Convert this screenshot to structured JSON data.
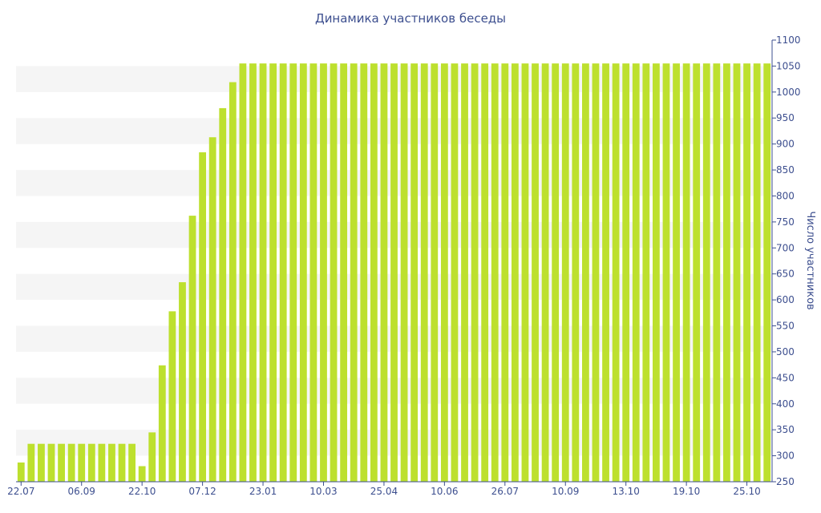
{
  "colors": {
    "bar": "#bde02e",
    "axis": "#3d4f8f",
    "band": "#f5f5f5"
  },
  "chart_data": {
    "type": "bar",
    "title": "Динамика участников беседы",
    "ylabel": "Число участников",
    "xlabel": "",
    "ylim": [
      250,
      1100
    ],
    "yticks": [
      250,
      300,
      350,
      400,
      450,
      500,
      550,
      600,
      650,
      700,
      750,
      800,
      850,
      900,
      950,
      1000,
      1050,
      1100
    ],
    "y_axis_side": "right",
    "grid": "alternating horizontal bands",
    "x_tick_labels": [
      {
        "bar": 0,
        "label": "22.07"
      },
      {
        "bar": 6,
        "label": "06.09"
      },
      {
        "bar": 12,
        "label": "22.10"
      },
      {
        "bar": 18,
        "label": "07.12"
      },
      {
        "bar": 24,
        "label": "23.01"
      },
      {
        "bar": 30,
        "label": "10.03"
      },
      {
        "bar": 36,
        "label": "25.04"
      },
      {
        "bar": 42,
        "label": "10.06"
      },
      {
        "bar": 48,
        "label": "26.07"
      },
      {
        "bar": 54,
        "label": "10.09"
      },
      {
        "bar": 60,
        "label": "13.10"
      },
      {
        "bar": 66,
        "label": "19.10"
      },
      {
        "bar": 72,
        "label": "25.10"
      }
    ],
    "values": [
      287,
      323,
      323,
      323,
      323,
      323,
      323,
      323,
      323,
      323,
      323,
      323,
      280,
      345,
      474,
      578,
      634,
      762,
      884,
      913,
      969,
      1019,
      1055,
      1055,
      1055,
      1055,
      1055,
      1055,
      1055,
      1055,
      1055,
      1055,
      1055,
      1055,
      1055,
      1055,
      1055,
      1055,
      1055,
      1055,
      1055,
      1055,
      1055,
      1055,
      1055,
      1055,
      1055,
      1055,
      1055,
      1055,
      1055,
      1055,
      1055,
      1055,
      1055,
      1055,
      1055,
      1055,
      1055,
      1055,
      1055,
      1055,
      1055,
      1055,
      1055,
      1055,
      1055,
      1055,
      1055,
      1055,
      1055,
      1055,
      1055,
      1055,
      1055
    ]
  }
}
